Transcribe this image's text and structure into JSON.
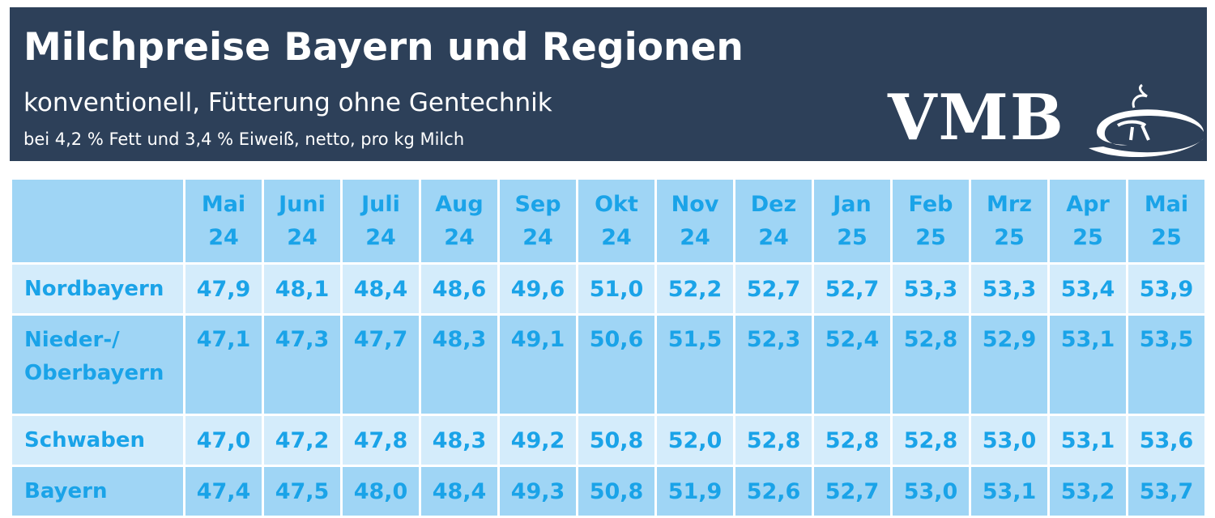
{
  "header": {
    "title": "Milchpreise Bayern und Regionen",
    "subtitle": "konventionell, Fütterung ohne Gentechnik",
    "note": "bei 4,2 % Fett und 3,4 % Eiweiß, netto, pro kg Milch",
    "logo_text": "VMB"
  },
  "colors": {
    "header_bg": "#2d4059",
    "text_blue": "#1aa3e8",
    "row_light": "#d4ecfb",
    "row_dark": "#9fd5f5"
  },
  "table": {
    "columns": [
      {
        "month": "Mai",
        "year": "24"
      },
      {
        "month": "Juni",
        "year": "24"
      },
      {
        "month": "Juli",
        "year": "24"
      },
      {
        "month": "Aug",
        "year": "24"
      },
      {
        "month": "Sep",
        "year": "24"
      },
      {
        "month": "Okt",
        "year": "24"
      },
      {
        "month": "Nov",
        "year": "24"
      },
      {
        "month": "Dez",
        "year": "24"
      },
      {
        "month": "Jan",
        "year": "25"
      },
      {
        "month": "Feb",
        "year": "25"
      },
      {
        "month": "Mrz",
        "year": "25"
      },
      {
        "month": "Apr",
        "year": "25"
      },
      {
        "month": "Mai",
        "year": "25"
      }
    ],
    "rows": [
      {
        "region": "Nordbayern",
        "values": [
          "47,9",
          "48,1",
          "48,4",
          "48,6",
          "49,6",
          "51,0",
          "52,2",
          "52,7",
          "52,7",
          "53,3",
          "53,3",
          "53,4",
          "53,9"
        ]
      },
      {
        "region": "Nieder-/ Oberbayern",
        "region_line1": "Nieder-/",
        "region_line2": "Oberbayern",
        "values": [
          "47,1",
          "47,3",
          "47,7",
          "48,3",
          "49,1",
          "50,6",
          "51,5",
          "52,3",
          "52,4",
          "52,8",
          "52,9",
          "53,1",
          "53,5"
        ]
      },
      {
        "region": "Schwaben",
        "values": [
          "47,0",
          "47,2",
          "47,8",
          "48,3",
          "49,2",
          "50,8",
          "52,0",
          "52,8",
          "52,8",
          "52,8",
          "53,0",
          "53,1",
          "53,6"
        ]
      },
      {
        "region": "Bayern",
        "values": [
          "47,4",
          "47,5",
          "48,0",
          "48,4",
          "49,3",
          "50,8",
          "51,9",
          "52,6",
          "52,7",
          "53,0",
          "53,1",
          "53,2",
          "53,7"
        ]
      }
    ]
  }
}
